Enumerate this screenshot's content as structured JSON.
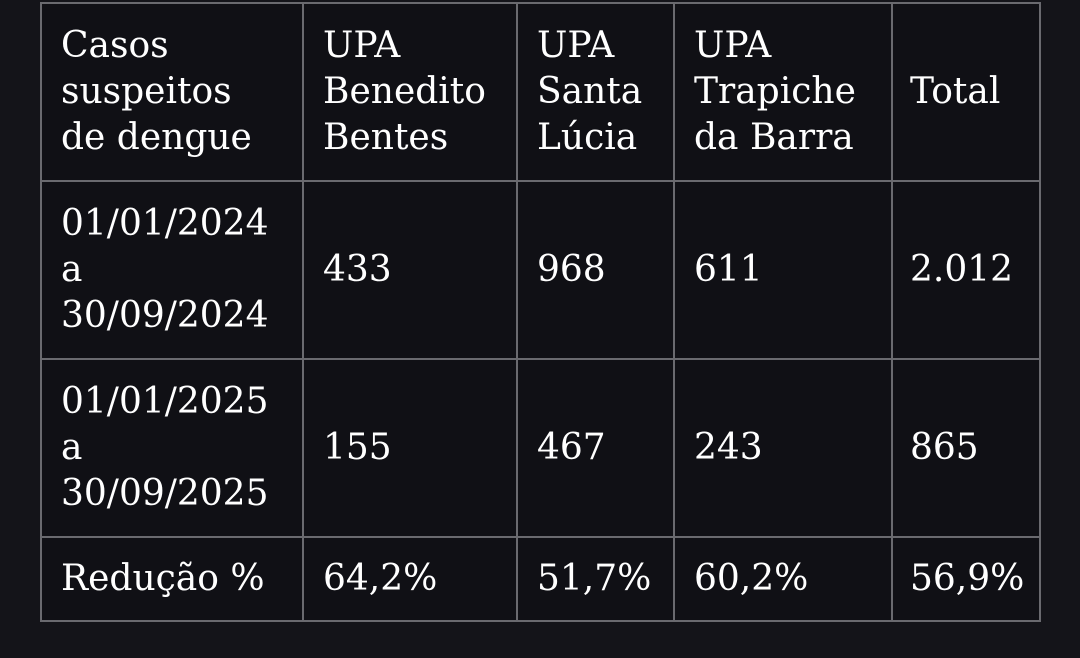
{
  "table": {
    "header": [
      "Casos\nsuspeitos\nde dengue",
      "UPA\nBenedito\nBentes",
      "UPA\nSanta\nLúcia",
      "UPA\nTrapiche\nda Barra",
      "Total"
    ],
    "rows": [
      [
        "01/01/2024\na\n30/09/2024",
        "433",
        "968",
        "611",
        "2.012"
      ],
      [
        "01/01/2025\na\n30/09/2025",
        "155",
        "467",
        "243",
        "865"
      ],
      [
        "Redução %",
        "64,2%",
        "51,7%",
        "60,2%",
        "56,9%"
      ]
    ]
  }
}
